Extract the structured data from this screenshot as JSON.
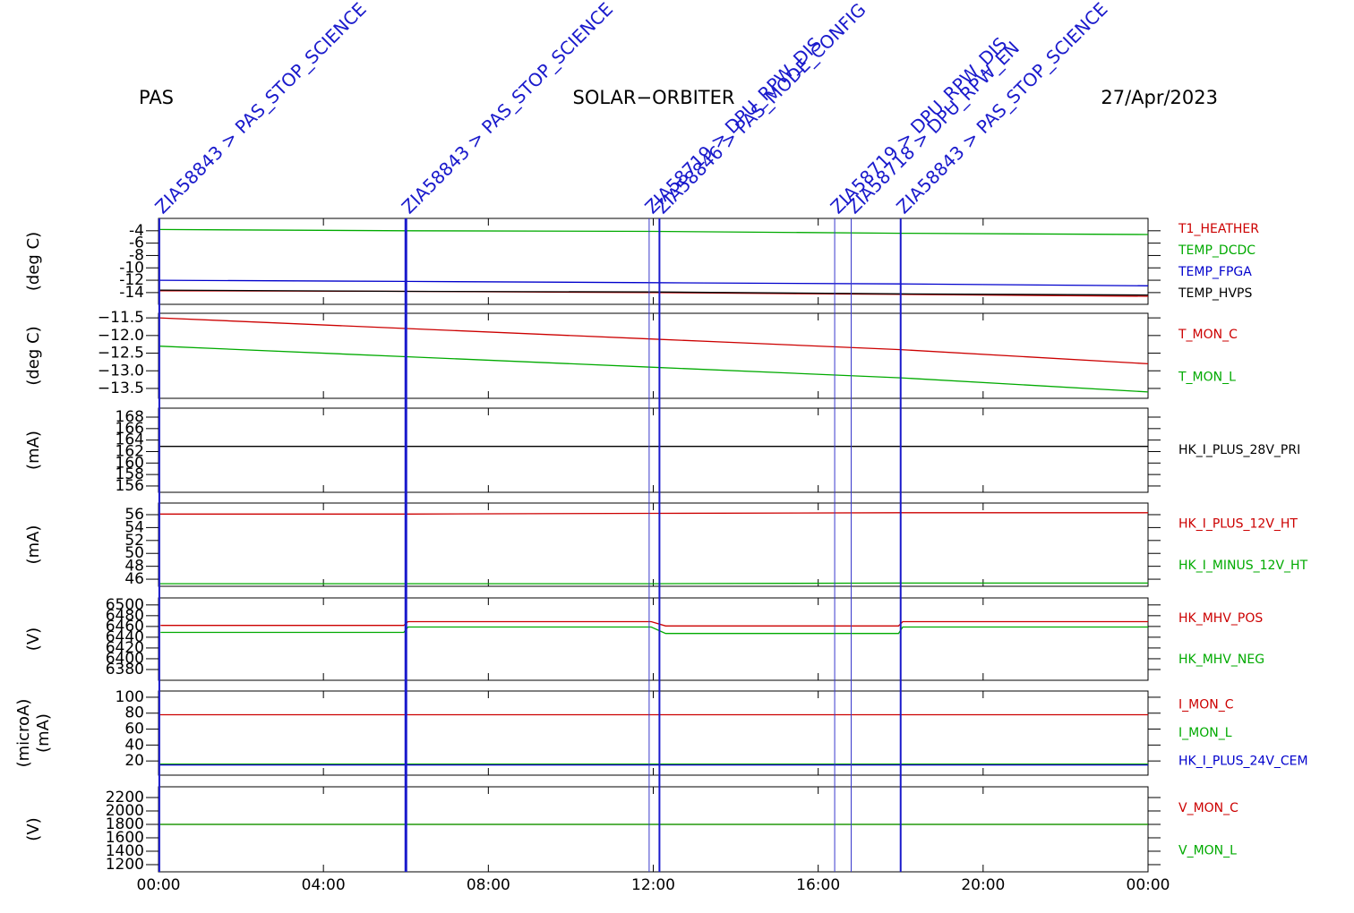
{
  "header": {
    "left": "PAS",
    "center": "SOLAR−ORBITER",
    "right": "27/Apr/2023"
  },
  "events": [
    {
      "x": 0.02,
      "label": "ZIA58843 > PAS_STOP_SCIENCE",
      "color": "#1a1acc",
      "width": 2
    },
    {
      "x": 6.0,
      "label": "ZIA58843 > PAS_STOP_SCIENCE",
      "color": "#1a1acc",
      "width": 3
    },
    {
      "x": 11.9,
      "label": "ZIA58719 > DPU_RPW_DIS",
      "color": "#3a3acc",
      "width": 1
    },
    {
      "x": 12.15,
      "label": "ZIA58846 > PAS_MODE_CONFIG",
      "color": "#1a1acc",
      "width": 2
    },
    {
      "x": 16.4,
      "label": "ZIA58719 > DPU_RPW_DIS",
      "color": "#3a3acc",
      "width": 1
    },
    {
      "x": 16.8,
      "label": "ZIA58718 > DPU_RPW_EN",
      "color": "#3a3acc",
      "width": 1
    },
    {
      "x": 18.0,
      "label": "ZIA58843 > PAS_STOP_SCIENCE",
      "color": "#1a1acc",
      "width": 2
    }
  ],
  "time_axis": {
    "xlim": [
      0,
      24
    ],
    "xticks": [
      {
        "value": 0,
        "label": "00:00"
      },
      {
        "value": 4,
        "label": "04:00"
      },
      {
        "value": 8,
        "label": "08:00"
      },
      {
        "value": 12,
        "label": "12:00"
      },
      {
        "value": 16,
        "label": "16:00"
      },
      {
        "value": 20,
        "label": "20:00"
      },
      {
        "value": 24,
        "label": "00:00"
      }
    ]
  },
  "chart_data": [
    {
      "type": "line",
      "ylabel": [
        "(deg C)"
      ],
      "ylim": [
        -15.9,
        -2
      ],
      "yticks": [
        -4,
        -6,
        -8,
        -10,
        -12,
        -14
      ],
      "x": [
        0,
        6,
        12,
        18,
        24
      ],
      "series": [
        {
          "name": "T1_HEATHER",
          "color": "#cc0000",
          "values": [
            -13.7,
            -13.8,
            -14.0,
            -14.3,
            -14.6
          ]
        },
        {
          "name": "TEMP_DCDC",
          "color": "#00aa00",
          "values": [
            -3.8,
            -4.0,
            -4.1,
            -4.4,
            -4.6
          ]
        },
        {
          "name": "TEMP_FPGA",
          "color": "#0000cc",
          "values": [
            -12.0,
            -12.2,
            -12.4,
            -12.6,
            -12.9
          ]
        },
        {
          "name": "TEMP_HVPS",
          "color": "#000000",
          "values": [
            -13.6,
            -13.8,
            -13.9,
            -14.2,
            -14.4
          ]
        }
      ]
    },
    {
      "type": "line",
      "ylabel": [
        "(deg C)"
      ],
      "ylim": [
        -13.78,
        -11.37
      ],
      "yticks": [
        {
          "value": -11.5,
          "label": "−11.5"
        },
        {
          "value": -12.0,
          "label": "−12.0"
        },
        {
          "value": -12.5,
          "label": "−12.5"
        },
        {
          "value": -13.0,
          "label": "−13.0"
        },
        {
          "value": -13.5,
          "label": "−13.5"
        }
      ],
      "x": [
        0,
        6,
        12,
        18,
        24
      ],
      "series": [
        {
          "name": "T_MON_C",
          "color": "#cc0000",
          "values": [
            -11.5,
            -11.8,
            -12.1,
            -12.4,
            -12.8
          ]
        },
        {
          "name": "T_MON_L",
          "color": "#00aa00",
          "values": [
            -12.3,
            -12.6,
            -12.9,
            -13.2,
            -13.6
          ]
        }
      ]
    },
    {
      "type": "line",
      "ylabel": [
        "(mA)"
      ],
      "ylim": [
        154.9,
        169.56
      ],
      "yticks": [
        156,
        158,
        160,
        162,
        164,
        166,
        168
      ],
      "x": [
        0,
        6,
        12,
        18,
        24
      ],
      "series": [
        {
          "name": "HK_I_PLUS_28V_PRI",
          "color": "#000000",
          "values": [
            162.9,
            162.9,
            162.9,
            162.9,
            162.9
          ]
        }
      ]
    },
    {
      "type": "line",
      "ylabel": [
        "(mA)"
      ],
      "ylim": [
        44.9,
        57.8
      ],
      "yticks": [
        46,
        48,
        50,
        52,
        54,
        56
      ],
      "x": [
        0,
        6,
        12,
        18,
        24
      ],
      "series": [
        {
          "name": "HK_I_PLUS_12V_HT",
          "color": "#cc0000",
          "values": [
            56.1,
            56.1,
            56.2,
            56.3,
            56.3
          ]
        },
        {
          "name": "HK_I_MINUS_12V_HT",
          "color": "#00aa00",
          "values": [
            45.3,
            45.3,
            45.3,
            45.4,
            45.4
          ]
        }
      ]
    },
    {
      "type": "line",
      "ylabel": [
        "(V)"
      ],
      "ylim": [
        6360,
        6513
      ],
      "yticks": [
        6380,
        6400,
        6420,
        6440,
        6460,
        6480,
        6500
      ],
      "x": [
        0.05,
        5.95,
        6.05,
        11.95,
        12.3,
        17.95,
        18.05,
        24
      ],
      "series": [
        {
          "name": "HK_MHV_POS",
          "color": "#cc0000",
          "values": [
            6462,
            6462,
            6469,
            6469,
            6461,
            6461,
            6469,
            6469
          ]
        },
        {
          "name": "HK_MHV_NEG",
          "color": "#00aa00",
          "values": [
            6449,
            6449,
            6459,
            6459,
            6447,
            6447,
            6459,
            6459
          ]
        }
      ]
    },
    {
      "type": "line",
      "ylabel": [
        "(microA)",
        "(mA)"
      ],
      "ylim": [
        2.2,
        107.8
      ],
      "yticks": [
        20,
        40,
        60,
        80,
        100
      ],
      "x": [
        0,
        6,
        12,
        18,
        24
      ],
      "series": [
        {
          "name": "I_MON_C",
          "color": "#cc0000",
          "values": [
            78,
            78,
            78,
            78,
            78
          ]
        },
        {
          "name": "I_MON_L",
          "color": "#00aa00",
          "values": [
            16,
            16,
            16,
            16,
            16
          ]
        },
        {
          "name": "HK_I_PLUS_24V_CEM",
          "color": "#0000cc",
          "values": [
            15,
            15,
            15,
            15,
            15
          ]
        }
      ]
    },
    {
      "type": "line",
      "ylabel": [
        "(V)"
      ],
      "ylim": [
        1093,
        2360
      ],
      "yticks": [
        1200,
        1400,
        1600,
        1800,
        2000,
        2200
      ],
      "x": [
        0,
        6,
        12,
        18,
        24
      ],
      "series": [
        {
          "name": "V_MON_C",
          "color": "#cc0000",
          "values": [
            1800,
            1800,
            1800,
            1800,
            1800
          ]
        },
        {
          "name": "V_MON_L",
          "color": "#00aa00",
          "values": [
            1800,
            1800,
            1800,
            1800,
            1800
          ]
        }
      ]
    }
  ]
}
